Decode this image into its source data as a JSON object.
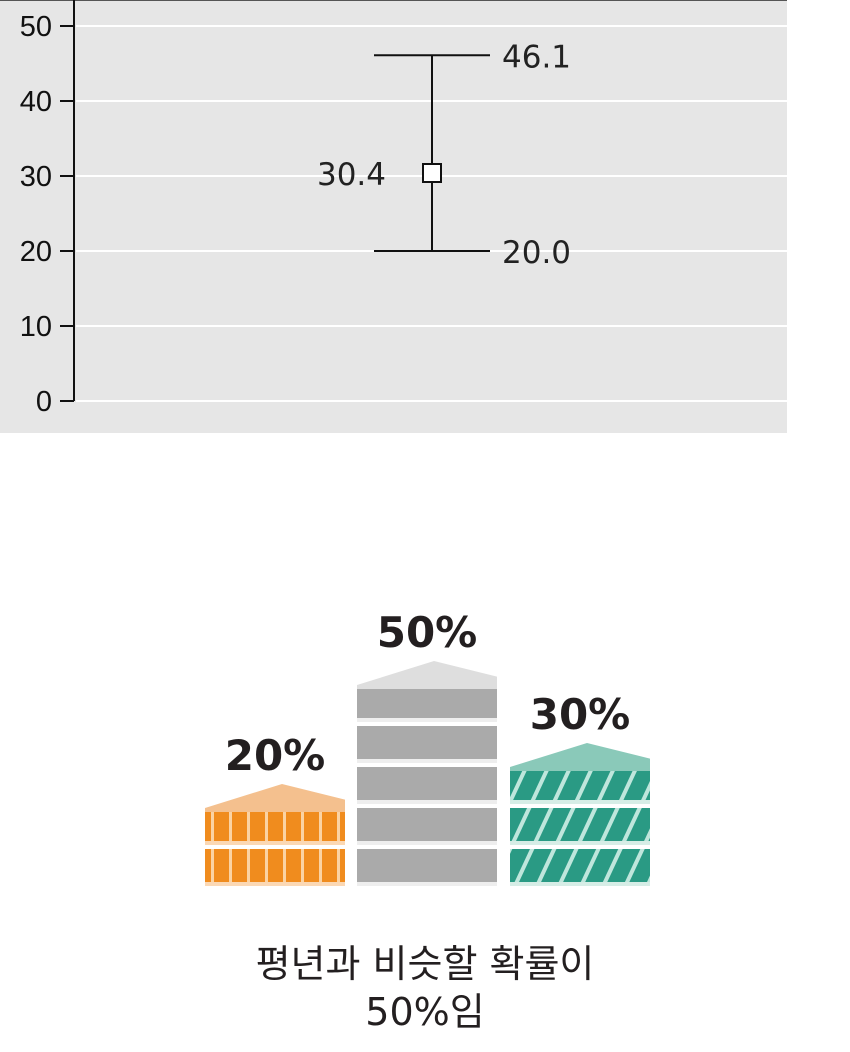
{
  "chart_data": [
    {
      "type": "errorbar",
      "title": "",
      "xlabel": "",
      "ylabel": "",
      "ylim": [
        0,
        50
      ],
      "y_ticks": [
        0,
        10,
        20,
        30,
        40,
        50
      ],
      "grid": true,
      "points": [
        {
          "center": 30.4,
          "upper": 46.1,
          "lower": 20.0,
          "center_label": "30.4",
          "upper_label": "46.1",
          "lower_label": "20.0"
        }
      ],
      "colors": {
        "plot_background": "#e6e6e6",
        "grid": "#ffffff",
        "line": "#111111"
      }
    },
    {
      "type": "bar",
      "title": "",
      "categories": [
        "",
        "",
        ""
      ],
      "values": [
        20,
        50,
        30
      ],
      "value_labels": [
        "20%",
        "50%",
        "30%"
      ],
      "colors": [
        "#f08c1e",
        "#aaaaaa",
        "#2a9a84"
      ]
    }
  ],
  "caption": {
    "line1": "평년과 비슷할 확률이",
    "line2": "50%임"
  }
}
